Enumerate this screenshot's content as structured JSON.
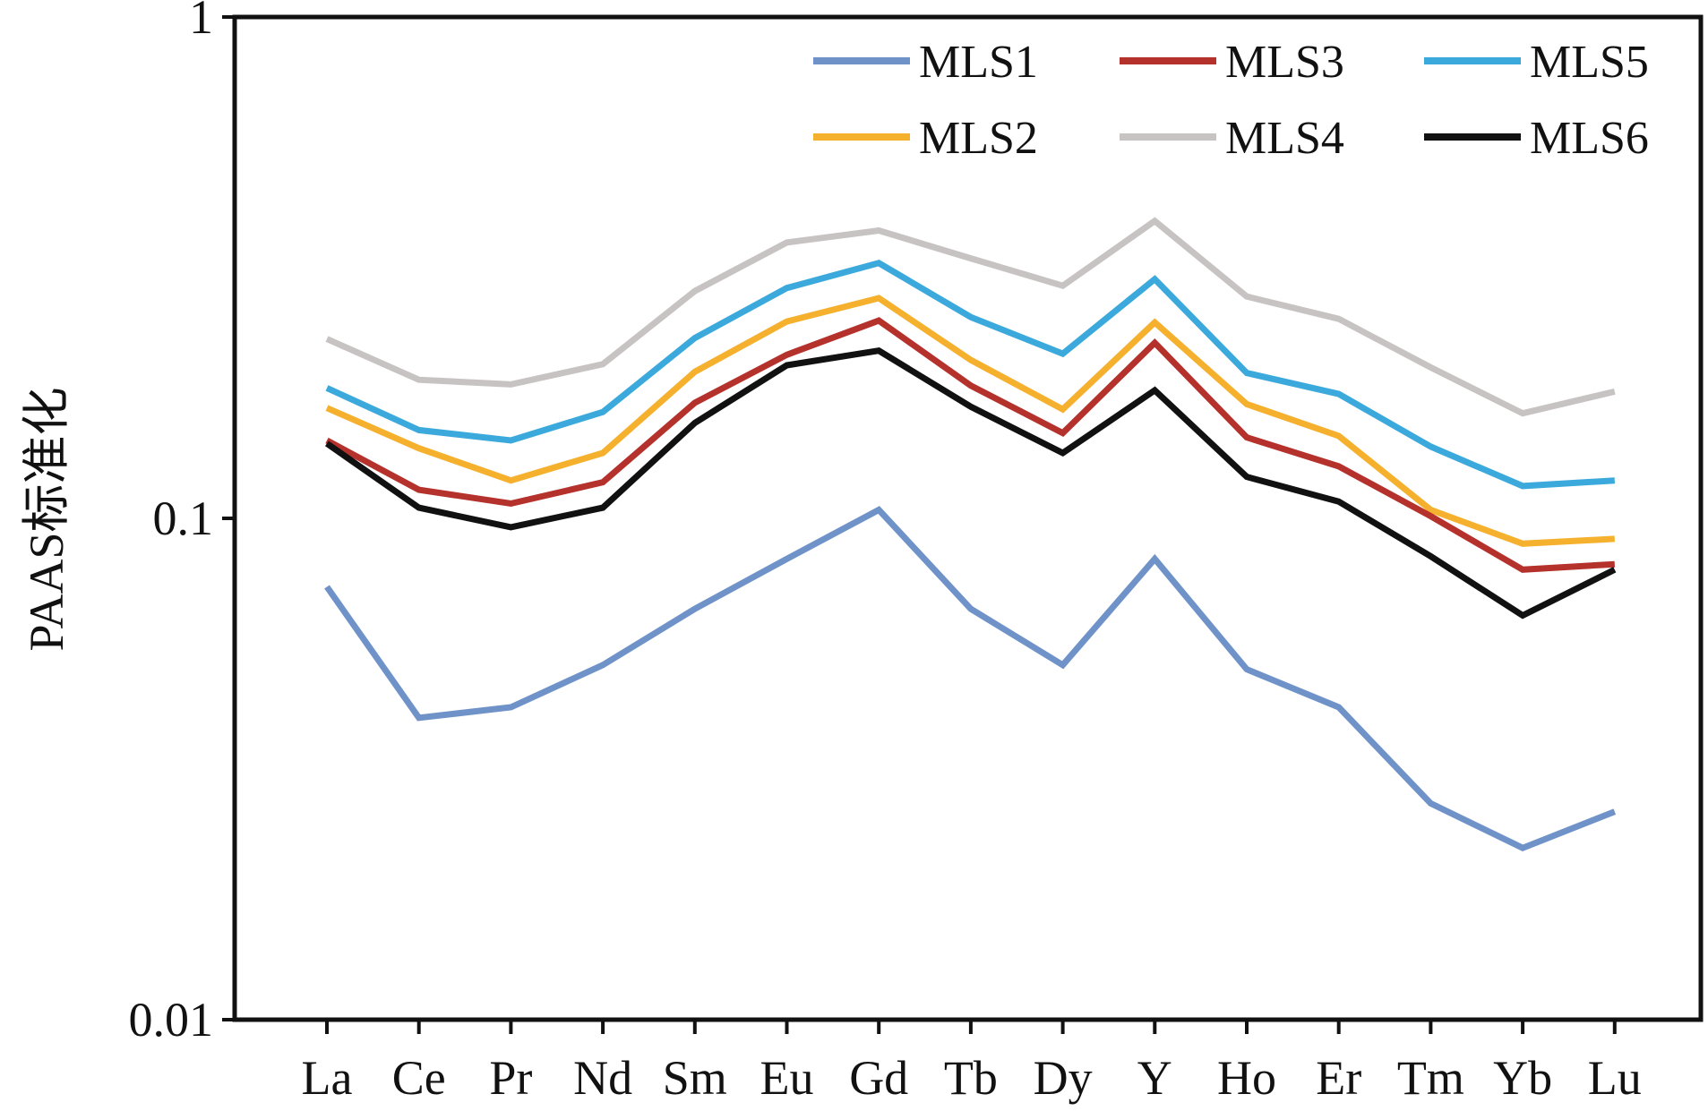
{
  "chart_data": {
    "type": "line",
    "ylabel": "PAAS标准化",
    "xlabel": "",
    "title": "",
    "y_scale": "log",
    "ylim": [
      0.01,
      1
    ],
    "yticks": [
      "0.01",
      "0.1",
      "1"
    ],
    "categories": [
      "La",
      "Ce",
      "Pr",
      "Nd",
      "Sm",
      "Eu",
      "Gd",
      "Tb",
      "Dy",
      "Y",
      "Ho",
      "Er",
      "Tm",
      "Yb",
      "Lu"
    ],
    "legend_position": "top-right",
    "grid": false,
    "series": [
      {
        "name": "MLS1",
        "color": "#6f93c9",
        "values": [
          0.073,
          0.04,
          0.042,
          0.051,
          0.066,
          0.083,
          0.104,
          0.066,
          0.051,
          0.083,
          0.05,
          0.042,
          0.027,
          0.022,
          0.026
        ]
      },
      {
        "name": "MLS2",
        "color": "#f5b02e",
        "values": [
          0.166,
          0.138,
          0.119,
          0.135,
          0.196,
          0.247,
          0.275,
          0.207,
          0.165,
          0.246,
          0.169,
          0.146,
          0.104,
          0.089,
          0.091
        ]
      },
      {
        "name": "MLS3",
        "color": "#b5312c",
        "values": [
          0.143,
          0.114,
          0.107,
          0.118,
          0.17,
          0.212,
          0.248,
          0.184,
          0.148,
          0.224,
          0.145,
          0.127,
          0.101,
          0.079,
          0.081
        ]
      },
      {
        "name": "MLS4",
        "color": "#c8c3c3",
        "values": [
          0.228,
          0.189,
          0.185,
          0.203,
          0.284,
          0.355,
          0.375,
          0.33,
          0.291,
          0.392,
          0.277,
          0.25,
          0.2,
          0.162,
          0.179
        ]
      },
      {
        "name": "MLS5",
        "color": "#3ca9dc",
        "values": [
          0.182,
          0.15,
          0.143,
          0.163,
          0.229,
          0.288,
          0.323,
          0.252,
          0.213,
          0.3,
          0.195,
          0.177,
          0.139,
          0.116,
          0.119
        ]
      },
      {
        "name": "MLS6",
        "color": "#111111",
        "values": [
          0.141,
          0.105,
          0.096,
          0.105,
          0.155,
          0.202,
          0.216,
          0.167,
          0.135,
          0.18,
          0.121,
          0.108,
          0.084,
          0.064,
          0.079
        ]
      }
    ]
  }
}
